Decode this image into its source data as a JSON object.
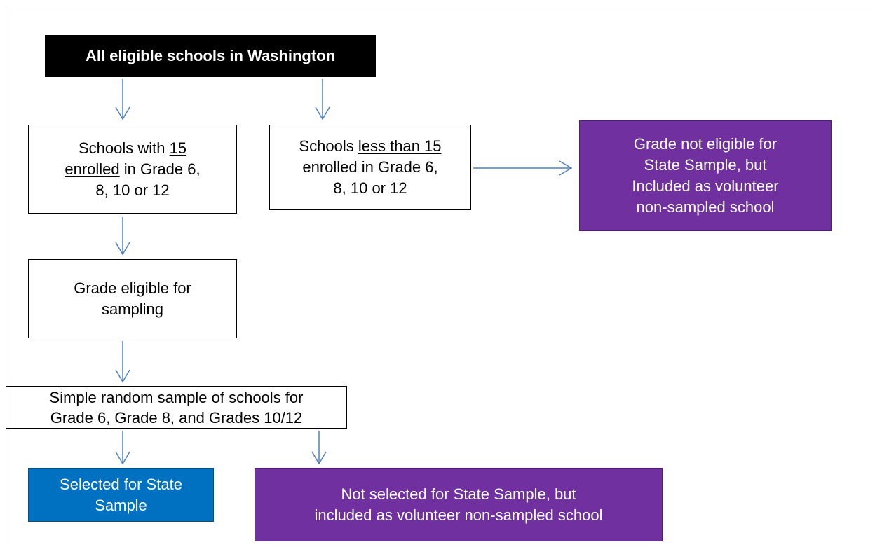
{
  "nodes": [
    {
      "lines": [
        [
          "All eligible schools in Washington"
        ]
      ]
    },
    {
      "lines": [
        [
          "Schools with ",
          "15"
        ],
        [
          "enrolled",
          " in Grade 6,"
        ],
        [
          "8, 10 or 12"
        ]
      ]
    },
    {
      "lines": [
        [
          "Schools ",
          "less than 15"
        ],
        [
          "enrolled in Grade 6,"
        ],
        [
          "8, 10 or 12"
        ]
      ]
    },
    {
      "lines": [
        [
          "Grade not eligible for"
        ],
        [
          "State Sample, but"
        ],
        [
          "Included as volunteer"
        ],
        [
          "non-sampled school"
        ]
      ]
    },
    {
      "lines": [
        [
          "Grade eligible for"
        ],
        [
          "sampling"
        ]
      ]
    },
    {
      "lines": [
        [
          "Simple random sample of schools for"
        ],
        [
          "Grade 6, Grade 8, and Grades 10/12"
        ]
      ]
    },
    {
      "lines": [
        [
          "Selected for State"
        ],
        [
          "Sample"
        ]
      ]
    },
    {
      "lines": [
        [
          "Not selected for State Sample, but"
        ],
        [
          "included as volunteer non-sampled school"
        ]
      ]
    }
  ]
}
